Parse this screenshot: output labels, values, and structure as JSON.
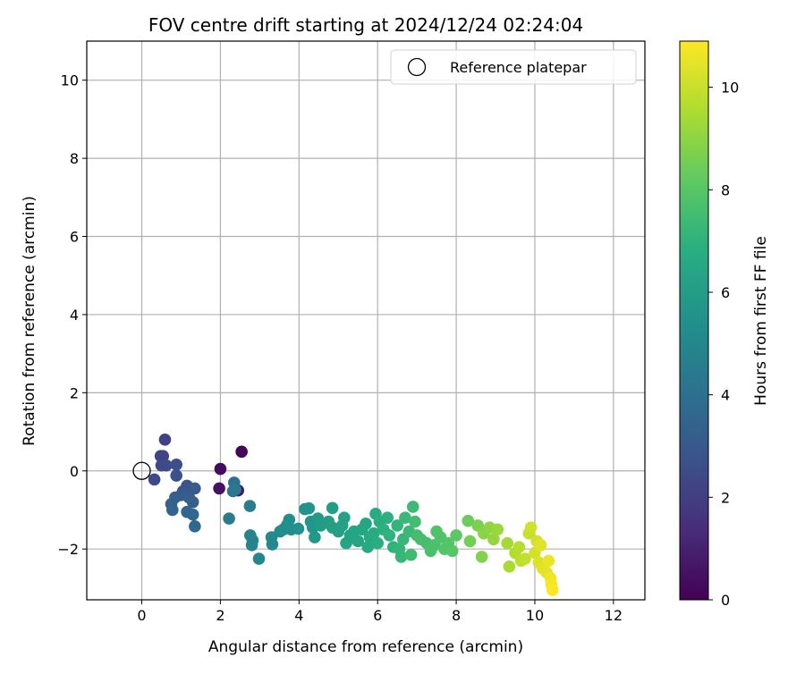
{
  "chart_data": {
    "type": "scatter",
    "title": "FOV centre drift starting at 2024/12/24 02:24:04",
    "xlabel": "Angular distance from reference (arcmin)",
    "ylabel": "Rotation from reference (arcmin)",
    "xlim": [
      -1.4,
      12.8
    ],
    "ylim": [
      -3.3,
      11.0
    ],
    "xticks": [
      0,
      2,
      4,
      6,
      8,
      10,
      12
    ],
    "yticks": [
      -2,
      0,
      2,
      4,
      6,
      8,
      10
    ],
    "grid": true,
    "legend": {
      "placement": "top-right",
      "entries": [
        "Reference platepar"
      ]
    },
    "reference_point": {
      "x": 0,
      "y": 0
    },
    "colorbar": {
      "label": "Hours from first FF file",
      "colormap": "viridis",
      "range": [
        0,
        10.9
      ],
      "ticks": [
        0,
        2,
        4,
        6,
        8,
        10
      ]
    },
    "points": [
      {
        "x": 2.54,
        "y": 0.49,
        "c": 0.1
      },
      {
        "x": 2.0,
        "y": 0.05,
        "c": 0.3
      },
      {
        "x": 1.97,
        "y": -0.45,
        "c": 0.5
      },
      {
        "x": 2.45,
        "y": -0.5,
        "c": 0.7
      },
      {
        "x": 0.59,
        "y": 0.8,
        "c": 2.1
      },
      {
        "x": 0.48,
        "y": 0.38,
        "c": 2.2
      },
      {
        "x": 0.54,
        "y": 0.38,
        "c": 2.3
      },
      {
        "x": 0.5,
        "y": 0.14,
        "c": 2.4
      },
      {
        "x": 0.32,
        "y": -0.22,
        "c": 2.4
      },
      {
        "x": 0.62,
        "y": 0.14,
        "c": 2.5
      },
      {
        "x": 0.88,
        "y": 0.16,
        "c": 2.6
      },
      {
        "x": 0.88,
        "y": -0.12,
        "c": 2.7
      },
      {
        "x": 1.15,
        "y": -0.38,
        "c": 2.8
      },
      {
        "x": 1.05,
        "y": -0.52,
        "c": 2.9
      },
      {
        "x": 1.2,
        "y": -0.5,
        "c": 3.0
      },
      {
        "x": 1.35,
        "y": -0.45,
        "c": 3.1
      },
      {
        "x": 1.0,
        "y": -0.62,
        "c": 3.1
      },
      {
        "x": 1.2,
        "y": -0.68,
        "c": 3.2
      },
      {
        "x": 1.3,
        "y": -0.8,
        "c": 3.3
      },
      {
        "x": 0.85,
        "y": -0.68,
        "c": 3.3
      },
      {
        "x": 0.75,
        "y": -0.85,
        "c": 3.4
      },
      {
        "x": 0.78,
        "y": -1.0,
        "c": 3.5
      },
      {
        "x": 1.15,
        "y": -1.05,
        "c": 3.6
      },
      {
        "x": 1.3,
        "y": -1.12,
        "c": 3.6
      },
      {
        "x": 1.35,
        "y": -1.42,
        "c": 3.7
      },
      {
        "x": 2.35,
        "y": -0.3,
        "c": 4.1
      },
      {
        "x": 2.32,
        "y": -0.52,
        "c": 4.2
      },
      {
        "x": 2.38,
        "y": -0.48,
        "c": 4.3
      },
      {
        "x": 2.22,
        "y": -1.22,
        "c": 4.5
      },
      {
        "x": 2.75,
        "y": -0.9,
        "c": 4.6
      },
      {
        "x": 2.76,
        "y": -1.65,
        "c": 4.8
      },
      {
        "x": 2.82,
        "y": -1.78,
        "c": 4.9
      },
      {
        "x": 2.8,
        "y": -1.9,
        "c": 4.9
      },
      {
        "x": 2.98,
        "y": -2.25,
        "c": 5.0
      },
      {
        "x": 3.3,
        "y": -1.7,
        "c": 5.1
      },
      {
        "x": 3.32,
        "y": -1.88,
        "c": 5.1
      },
      {
        "x": 3.52,
        "y": -1.55,
        "c": 5.2
      },
      {
        "x": 3.6,
        "y": -1.5,
        "c": 5.3
      },
      {
        "x": 3.7,
        "y": -1.38,
        "c": 5.3
      },
      {
        "x": 3.75,
        "y": -1.25,
        "c": 5.4
      },
      {
        "x": 3.8,
        "y": -1.5,
        "c": 5.4
      },
      {
        "x": 3.98,
        "y": -1.48,
        "c": 5.5
      },
      {
        "x": 4.15,
        "y": -0.98,
        "c": 5.6
      },
      {
        "x": 4.25,
        "y": -0.96,
        "c": 5.6
      },
      {
        "x": 4.3,
        "y": -1.3,
        "c": 5.7
      },
      {
        "x": 4.35,
        "y": -1.45,
        "c": 5.7
      },
      {
        "x": 4.4,
        "y": -1.7,
        "c": 5.8
      },
      {
        "x": 4.48,
        "y": -1.22,
        "c": 5.8
      },
      {
        "x": 4.55,
        "y": -1.4,
        "c": 5.9
      },
      {
        "x": 4.6,
        "y": -1.35,
        "c": 5.9
      },
      {
        "x": 4.75,
        "y": -1.3,
        "c": 6.0
      },
      {
        "x": 4.85,
        "y": -0.95,
        "c": 6.0
      },
      {
        "x": 4.85,
        "y": -1.45,
        "c": 6.1
      },
      {
        "x": 5.0,
        "y": -1.55,
        "c": 6.1
      },
      {
        "x": 5.1,
        "y": -1.4,
        "c": 6.2
      },
      {
        "x": 5.15,
        "y": -1.2,
        "c": 6.2
      },
      {
        "x": 5.2,
        "y": -1.85,
        "c": 6.3
      },
      {
        "x": 5.3,
        "y": -1.65,
        "c": 6.3
      },
      {
        "x": 5.4,
        "y": -1.55,
        "c": 6.4
      },
      {
        "x": 5.5,
        "y": -1.8,
        "c": 6.4
      },
      {
        "x": 5.6,
        "y": -1.5,
        "c": 6.5
      },
      {
        "x": 5.7,
        "y": -1.35,
        "c": 6.5
      },
      {
        "x": 5.75,
        "y": -1.95,
        "c": 6.6
      },
      {
        "x": 5.8,
        "y": -1.7,
        "c": 6.6
      },
      {
        "x": 5.9,
        "y": -1.6,
        "c": 6.7
      },
      {
        "x": 5.95,
        "y": -1.1,
        "c": 6.7
      },
      {
        "x": 6.0,
        "y": -1.85,
        "c": 6.8
      },
      {
        "x": 6.05,
        "y": -1.3,
        "c": 6.8
      },
      {
        "x": 6.15,
        "y": -1.5,
        "c": 6.9
      },
      {
        "x": 6.25,
        "y": -1.2,
        "c": 6.9
      },
      {
        "x": 6.3,
        "y": -1.65,
        "c": 7.0
      },
      {
        "x": 6.4,
        "y": -1.95,
        "c": 7.0
      },
      {
        "x": 6.5,
        "y": -1.4,
        "c": 7.1
      },
      {
        "x": 6.55,
        "y": -2.0,
        "c": 7.1
      },
      {
        "x": 6.6,
        "y": -2.2,
        "c": 7.2
      },
      {
        "x": 6.65,
        "y": -1.75,
        "c": 7.2
      },
      {
        "x": 6.7,
        "y": -1.2,
        "c": 7.3
      },
      {
        "x": 6.8,
        "y": -1.55,
        "c": 7.3
      },
      {
        "x": 6.85,
        "y": -2.15,
        "c": 7.4
      },
      {
        "x": 6.9,
        "y": -0.92,
        "c": 7.4
      },
      {
        "x": 6.95,
        "y": -1.3,
        "c": 7.5
      },
      {
        "x": 7.0,
        "y": -1.65,
        "c": 7.5
      },
      {
        "x": 7.1,
        "y": -1.75,
        "c": 7.6
      },
      {
        "x": 7.25,
        "y": -1.85,
        "c": 7.6
      },
      {
        "x": 7.35,
        "y": -2.05,
        "c": 7.7
      },
      {
        "x": 7.45,
        "y": -1.9,
        "c": 7.7
      },
      {
        "x": 7.5,
        "y": -1.55,
        "c": 7.8
      },
      {
        "x": 7.6,
        "y": -1.7,
        "c": 7.8
      },
      {
        "x": 7.7,
        "y": -2.0,
        "c": 7.9
      },
      {
        "x": 7.8,
        "y": -1.85,
        "c": 7.9
      },
      {
        "x": 7.9,
        "y": -2.05,
        "c": 8.0
      },
      {
        "x": 8.0,
        "y": -1.65,
        "c": 8.1
      },
      {
        "x": 8.3,
        "y": -1.28,
        "c": 8.4
      },
      {
        "x": 8.35,
        "y": -1.8,
        "c": 8.5
      },
      {
        "x": 8.55,
        "y": -1.4,
        "c": 8.7
      },
      {
        "x": 8.65,
        "y": -2.2,
        "c": 8.8
      },
      {
        "x": 8.7,
        "y": -1.6,
        "c": 8.9
      },
      {
        "x": 8.85,
        "y": -1.45,
        "c": 9.0
      },
      {
        "x": 8.95,
        "y": -1.75,
        "c": 9.1
      },
      {
        "x": 9.05,
        "y": -1.5,
        "c": 9.2
      },
      {
        "x": 9.3,
        "y": -1.85,
        "c": 9.4
      },
      {
        "x": 9.35,
        "y": -2.45,
        "c": 9.5
      },
      {
        "x": 9.5,
        "y": -2.1,
        "c": 9.6
      },
      {
        "x": 9.6,
        "y": -1.95,
        "c": 9.7
      },
      {
        "x": 9.65,
        "y": -2.3,
        "c": 9.8
      },
      {
        "x": 9.75,
        "y": -2.25,
        "c": 9.9
      },
      {
        "x": 9.85,
        "y": -1.6,
        "c": 10.0
      },
      {
        "x": 9.9,
        "y": -1.45,
        "c": 10.1
      },
      {
        "x": 10.0,
        "y": -2.1,
        "c": 10.2
      },
      {
        "x": 10.05,
        "y": -1.8,
        "c": 10.2
      },
      {
        "x": 10.1,
        "y": -2.35,
        "c": 10.3
      },
      {
        "x": 10.15,
        "y": -1.9,
        "c": 10.4
      },
      {
        "x": 10.2,
        "y": -2.5,
        "c": 10.4
      },
      {
        "x": 10.3,
        "y": -2.6,
        "c": 10.5
      },
      {
        "x": 10.35,
        "y": -2.3,
        "c": 10.6
      },
      {
        "x": 10.4,
        "y": -2.75,
        "c": 10.7
      },
      {
        "x": 10.42,
        "y": -2.9,
        "c": 10.8
      },
      {
        "x": 10.45,
        "y": -3.05,
        "c": 10.9
      }
    ]
  }
}
